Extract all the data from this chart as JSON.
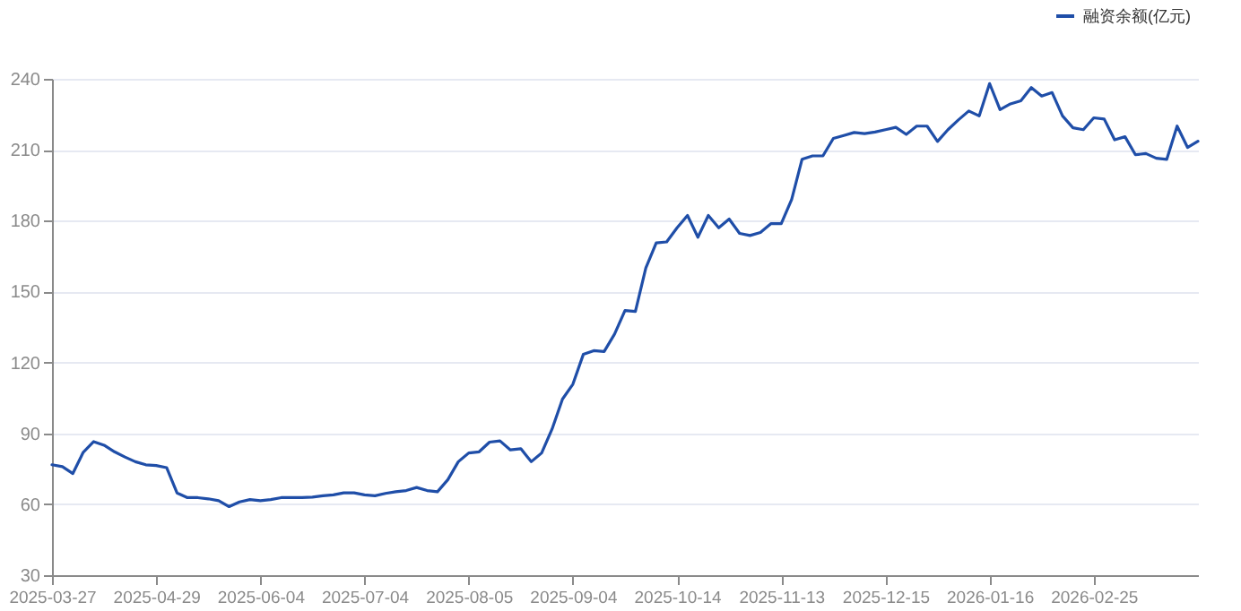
{
  "chart_data": {
    "type": "line",
    "categories": [
      "2025-03-27",
      null,
      null,
      null,
      null,
      null,
      null,
      null,
      null,
      null,
      "2025-04-29",
      null,
      null,
      null,
      null,
      null,
      null,
      null,
      null,
      null,
      "2025-06-04",
      null,
      null,
      null,
      null,
      null,
      null,
      null,
      null,
      null,
      "2025-07-04",
      null,
      null,
      null,
      null,
      null,
      null,
      null,
      null,
      null,
      "2025-08-05",
      null,
      null,
      null,
      null,
      null,
      null,
      null,
      null,
      null,
      "2025-09-04",
      null,
      null,
      null,
      null,
      null,
      null,
      null,
      null,
      null,
      "2025-10-14",
      null,
      null,
      null,
      null,
      null,
      null,
      null,
      null,
      null,
      "2025-11-13",
      null,
      null,
      null,
      null,
      null,
      null,
      null,
      null,
      null,
      "2025-12-15",
      null,
      null,
      null,
      null,
      null,
      null,
      null,
      null,
      null,
      "2026-01-16",
      null,
      null,
      null,
      null,
      null,
      null,
      null,
      null,
      null,
      "2026-02-25",
      null,
      null,
      null,
      null,
      null,
      null,
      null,
      null,
      null,
      null
    ],
    "series": [
      {
        "name": "融资余额(亿元)",
        "color": "#1f4ea8",
        "values": [
          76.7,
          75.9,
          73,
          82,
          86.5,
          85,
          82.2,
          80,
          78,
          76.7,
          76.4,
          75.5,
          64.8,
          62.8,
          62.8,
          62.3,
          61.5,
          59,
          61,
          62,
          61.5,
          62,
          62.8,
          62.8,
          62.8,
          63,
          63.6,
          64,
          64.8,
          64.8,
          64,
          63.6,
          64.6,
          65.3,
          65.8,
          67.1,
          65.8,
          65.3,
          70.4,
          78,
          81.7,
          82.2,
          86.3,
          86.8,
          83,
          83.5,
          78,
          81.7,
          91.8,
          104.5,
          110.8,
          123.4,
          125,
          124.6,
          132,
          142,
          141.6,
          160,
          170.6,
          171,
          177,
          182.2,
          173,
          182.2,
          177,
          180.7,
          174.6,
          173.7,
          175,
          178.7,
          178.7,
          189,
          206,
          207.4,
          207.4,
          214.8,
          216,
          217.3,
          216.8,
          217.5,
          218.5,
          219.5,
          216.5,
          220,
          220,
          213.5,
          218.5,
          222.6,
          226.4,
          224.3,
          238,
          227,
          229.4,
          230.7,
          236.3,
          232.7,
          234.2,
          224.3,
          219.3,
          218.5,
          223.5,
          223,
          214.2,
          215.5,
          207.9,
          208.4,
          206.4,
          205.9,
          220,
          211,
          213.6
        ]
      }
    ],
    "ylim": [
      30,
      240
    ],
    "yticks": [
      30,
      60,
      90,
      120,
      150,
      180,
      210,
      240
    ],
    "grid": "y",
    "legend": "top right",
    "marker": "none",
    "line_style": "solid"
  }
}
